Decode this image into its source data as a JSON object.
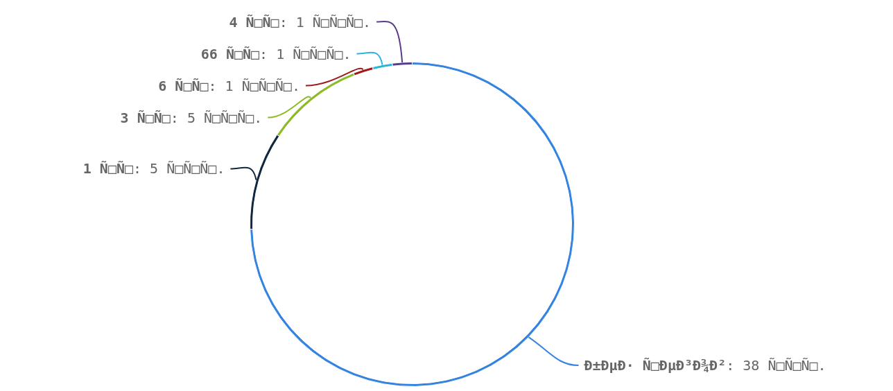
{
  "chart_data": {
    "type": "donut",
    "categories": [
      "Ð±ÐµÐ· Ñ□ÐµÐ³Ð¾Ð²",
      "1 Ñ□Ñ□",
      "3 Ñ□Ñ□",
      "6 Ñ□Ñ□",
      "66 Ñ□Ñ□",
      "4 Ñ□Ñ□"
    ],
    "values": [
      38,
      5,
      5,
      1,
      1,
      1
    ],
    "value_labels": [
      ": 38 Ñ□Ñ□Ñ□.",
      ": 5 Ñ□Ñ□Ñ□.",
      ": 5 Ñ□Ñ□Ñ□.",
      ": 1 Ñ□Ñ□Ñ□.",
      ": 1 Ñ□Ñ□Ñ□.",
      ": 1 Ñ□Ñ□Ñ□."
    ],
    "colors": [
      "#3583e0",
      "#0f2840",
      "#8cbb25",
      "#9c1b1b",
      "#2ab4d9",
      "#5a3a8c"
    ],
    "legend": false
  }
}
